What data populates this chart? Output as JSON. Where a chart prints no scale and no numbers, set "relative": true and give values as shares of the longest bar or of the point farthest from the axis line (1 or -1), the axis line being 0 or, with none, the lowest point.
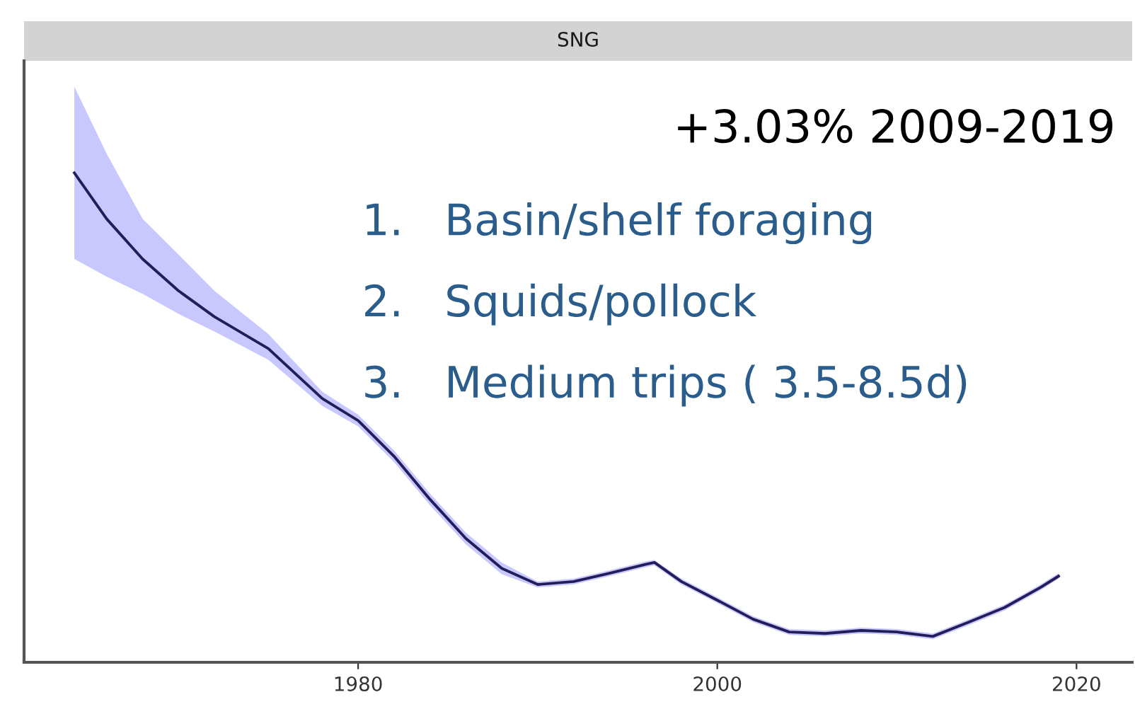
{
  "chart_data": {
    "type": "line",
    "title": "SNG",
    "relative": true,
    "x": [
      1964.2,
      1966,
      1968,
      1970,
      1972,
      1975,
      1978,
      1980,
      1982,
      1984,
      1986,
      1988,
      1990,
      1992,
      1994,
      1996,
      1996.5,
      1998,
      2000,
      2002,
      2004,
      2006,
      2008,
      2010,
      2012,
      2014,
      2016,
      2018,
      2019
    ],
    "series": [
      {
        "color": "#231e5a",
        "values": [
          1.0,
          0.906,
          0.824,
          0.759,
          0.706,
          0.641,
          0.539,
          0.494,
          0.421,
          0.333,
          0.253,
          0.192,
          0.159,
          0.165,
          0.182,
          0.2,
          0.204,
          0.165,
          0.127,
          0.088,
          0.062,
          0.059,
          0.065,
          0.062,
          0.053,
          0.082,
          0.112,
          0.153,
          0.176
        ],
        "lower": [
          0.824,
          0.788,
          0.753,
          0.712,
          0.676,
          0.618,
          0.524,
          0.482,
          0.409,
          0.321,
          0.241,
          0.18,
          0.153,
          0.159,
          0.176,
          0.194,
          0.198,
          0.159,
          0.121,
          0.082,
          0.056,
          0.053,
          0.059,
          0.056,
          0.047,
          0.076,
          0.106,
          0.147,
          0.171
        ],
        "upper": [
          1.176,
          1.039,
          0.906,
          0.833,
          0.759,
          0.671,
          0.553,
          0.506,
          0.433,
          0.345,
          0.265,
          0.204,
          0.165,
          0.171,
          0.188,
          0.206,
          0.209,
          0.171,
          0.133,
          0.094,
          0.068,
          0.065,
          0.071,
          0.068,
          0.059,
          0.088,
          0.118,
          0.159,
          0.182
        ]
      }
    ],
    "xlim": [
      1961.4,
      2023.1
    ],
    "xticks": [
      1980,
      2000,
      2020
    ],
    "grid": false,
    "legend": false,
    "annotations": [
      "+3.03% 2009-2019",
      "1.   Basin/shelf foraging",
      "2.   Squids/pollock",
      "3.   Medium trips ( 3.5-8.5d)"
    ]
  }
}
